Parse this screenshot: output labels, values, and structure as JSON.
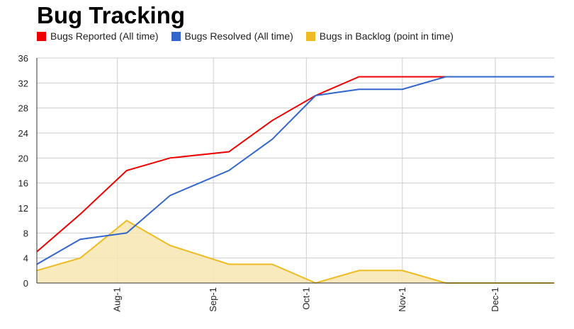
{
  "title": "Bug Tracking",
  "colors": {
    "reported": "#ee0000",
    "resolved": "#3366cc",
    "backlog": "#eebb22",
    "backlog_fill": "#f7e6b0",
    "grid": "#cccccc",
    "axis": "#333333"
  },
  "chart_data": {
    "type": "line",
    "title": "Bug Tracking",
    "xlabel": "",
    "ylabel": "",
    "ylim": [
      0,
      36
    ],
    "yticks": [
      0,
      4,
      8,
      12,
      16,
      20,
      24,
      28,
      32,
      36
    ],
    "xlim": [
      "2013-07-06",
      "2013-12-20"
    ],
    "xticks": [
      {
        "date": "2013-08-01",
        "label": "Aug-1"
      },
      {
        "date": "2013-09-01",
        "label": "Sep-1"
      },
      {
        "date": "2013-10-01",
        "label": "Oct-1"
      },
      {
        "date": "2013-11-01",
        "label": "Nov-1"
      },
      {
        "date": "2013-12-01",
        "label": "Dec-1"
      }
    ],
    "grid": true,
    "legend_position": "top-left",
    "x": [
      "2013-07-06",
      "2013-07-20",
      "2013-08-04",
      "2013-08-18",
      "2013-09-06",
      "2013-09-20",
      "2013-10-04",
      "2013-10-18",
      "2013-11-01",
      "2013-11-15",
      "2013-12-20"
    ],
    "series": [
      {
        "name": "Bugs Reported (All time)",
        "type": "line",
        "color": "#ee0000",
        "values": [
          5,
          11,
          18,
          20,
          21,
          26,
          30,
          33,
          33,
          33,
          33
        ]
      },
      {
        "name": "Bugs Resolved (All time)",
        "type": "line",
        "color": "#3366cc",
        "values": [
          3,
          7,
          8,
          14,
          18,
          23,
          30,
          31,
          31,
          33,
          33
        ]
      },
      {
        "name": "Bugs in Backlog (point in time)",
        "type": "area",
        "color": "#eebb22",
        "values": [
          2,
          4,
          10,
          6,
          3,
          3,
          0,
          2,
          2,
          0,
          0
        ]
      }
    ]
  }
}
